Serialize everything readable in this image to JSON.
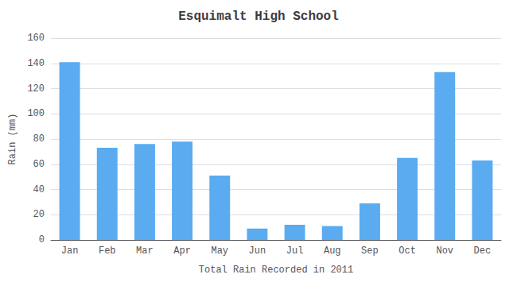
{
  "chart_data": {
    "type": "bar",
    "title": "Esquimalt High School",
    "xlabel": "Total Rain Recorded in 2011",
    "ylabel": "Rain (mm)",
    "categories": [
      "Jan",
      "Feb",
      "Mar",
      "Apr",
      "May",
      "Jun",
      "Jul",
      "Aug",
      "Sep",
      "Oct",
      "Nov",
      "Dec"
    ],
    "values": [
      141,
      73,
      76,
      78,
      51,
      9,
      12,
      11,
      29,
      65,
      133,
      63
    ],
    "color": "#5aabf0",
    "ylim": [
      0,
      160
    ],
    "yticks": [
      0,
      20,
      40,
      60,
      80,
      100,
      120,
      140,
      160
    ],
    "grid": true
  }
}
